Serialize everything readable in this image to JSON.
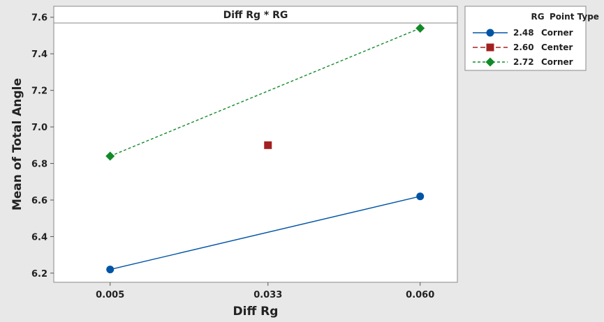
{
  "chart_data": {
    "type": "line",
    "title": "Diff Rg * RG",
    "xlabel": "Diff Rg",
    "ylabel": "Mean of Total Angle",
    "categories": [
      "0.005",
      "0.033",
      "0.060"
    ],
    "x_values": [
      0.005,
      0.033,
      0.06
    ],
    "xlim": [
      -0.005,
      0.0666
    ],
    "ylim": [
      6.15,
      7.66
    ],
    "yticks": [
      "6.2",
      "6.4",
      "6.6",
      "6.8",
      "7.0",
      "7.2",
      "7.4",
      "7.6"
    ],
    "ytick_values": [
      6.2,
      6.4,
      6.6,
      6.8,
      7.0,
      7.2,
      7.4,
      7.6
    ],
    "legend": {
      "position": "top-right",
      "header_rg": "RG",
      "header_type": "Point Type"
    },
    "series": [
      {
        "name": "2.48",
        "point_type": "Corner",
        "color": "#0054a6",
        "marker": "circle",
        "line_style": "solid",
        "x": [
          0.005,
          0.06
        ],
        "values": [
          6.22,
          6.62
        ]
      },
      {
        "name": "2.60",
        "point_type": "Center",
        "color": "#a32020",
        "marker": "square",
        "line_style": "dashed",
        "x": [
          0.033
        ],
        "values": [
          6.9
        ]
      },
      {
        "name": "2.72",
        "point_type": "Corner",
        "color": "#128a28",
        "marker": "diamond",
        "line_style": "dotted-dashed",
        "x": [
          0.005,
          0.06
        ],
        "values": [
          6.84,
          7.54
        ]
      }
    ]
  }
}
